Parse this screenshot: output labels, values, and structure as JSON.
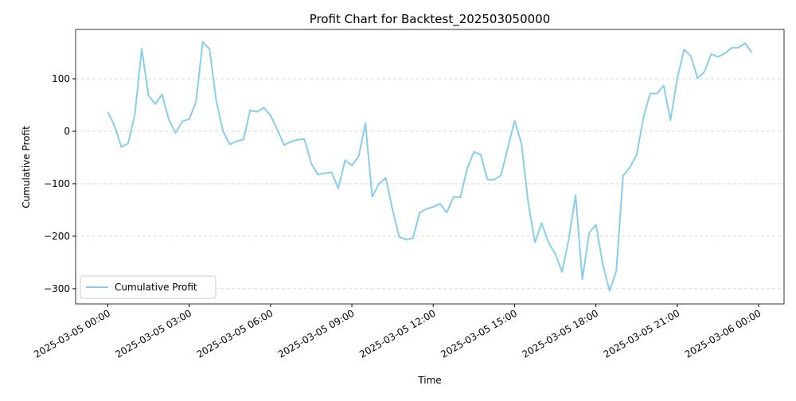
{
  "chart_data": {
    "type": "line",
    "title": "Profit Chart for Backtest_202503050000",
    "xlabel": "Time",
    "ylabel": "Cumulative Profit",
    "x": [
      "2025-03-05 00:00",
      "2025-03-05 00:15",
      "2025-03-05 00:30",
      "2025-03-05 00:45",
      "2025-03-05 01:00",
      "2025-03-05 01:15",
      "2025-03-05 01:30",
      "2025-03-05 01:45",
      "2025-03-05 02:00",
      "2025-03-05 02:15",
      "2025-03-05 02:30",
      "2025-03-05 02:45",
      "2025-03-05 03:00",
      "2025-03-05 03:15",
      "2025-03-05 03:30",
      "2025-03-05 03:45",
      "2025-03-05 04:00",
      "2025-03-05 04:15",
      "2025-03-05 04:30",
      "2025-03-05 04:45",
      "2025-03-05 05:00",
      "2025-03-05 05:15",
      "2025-03-05 05:30",
      "2025-03-05 05:45",
      "2025-03-05 06:00",
      "2025-03-05 06:15",
      "2025-03-05 06:30",
      "2025-03-05 06:45",
      "2025-03-05 07:00",
      "2025-03-05 07:15",
      "2025-03-05 07:30",
      "2025-03-05 07:45",
      "2025-03-05 08:00",
      "2025-03-05 08:15",
      "2025-03-05 08:30",
      "2025-03-05 08:45",
      "2025-03-05 09:00",
      "2025-03-05 09:15",
      "2025-03-05 09:30",
      "2025-03-05 09:45",
      "2025-03-05 10:00",
      "2025-03-05 10:15",
      "2025-03-05 10:30",
      "2025-03-05 10:45",
      "2025-03-05 11:00",
      "2025-03-05 11:15",
      "2025-03-05 11:30",
      "2025-03-05 11:45",
      "2025-03-05 12:00",
      "2025-03-05 12:15",
      "2025-03-05 12:30",
      "2025-03-05 12:45",
      "2025-03-05 13:00",
      "2025-03-05 13:15",
      "2025-03-05 13:30",
      "2025-03-05 13:45",
      "2025-03-05 14:00",
      "2025-03-05 14:15",
      "2025-03-05 14:30",
      "2025-03-05 14:45",
      "2025-03-05 15:00",
      "2025-03-05 15:15",
      "2025-03-05 15:30",
      "2025-03-05 15:45",
      "2025-03-05 16:00",
      "2025-03-05 16:15",
      "2025-03-05 16:30",
      "2025-03-05 16:45",
      "2025-03-05 17:00",
      "2025-03-05 17:15",
      "2025-03-05 17:30",
      "2025-03-05 17:45",
      "2025-03-05 18:00",
      "2025-03-05 18:15",
      "2025-03-05 18:30",
      "2025-03-05 18:45",
      "2025-03-05 19:00",
      "2025-03-05 19:15",
      "2025-03-05 19:30",
      "2025-03-05 19:45",
      "2025-03-05 20:00",
      "2025-03-05 20:15",
      "2025-03-05 20:30",
      "2025-03-05 20:45",
      "2025-03-05 21:00",
      "2025-03-05 21:15",
      "2025-03-05 21:30",
      "2025-03-05 21:45",
      "2025-03-05 22:00",
      "2025-03-05 22:15",
      "2025-03-05 22:30",
      "2025-03-05 22:45",
      "2025-03-05 23:00",
      "2025-03-05 23:15",
      "2025-03-05 23:30",
      "2025-03-05 23:45"
    ],
    "series": [
      {
        "name": "Cumulative Profit",
        "color": "#87ceeb",
        "values": [
          37,
          10,
          -30,
          -23,
          33,
          157,
          68,
          52,
          70,
          22,
          -3,
          19,
          23,
          56,
          170,
          157,
          58,
          0,
          -25,
          -19,
          -16,
          40,
          37,
          45,
          30,
          3,
          -26,
          -20,
          -16,
          -15,
          -61,
          -83,
          -80,
          -78,
          -109,
          -55,
          -65,
          -48,
          15,
          -125,
          -100,
          -89,
          -150,
          -202,
          -206,
          -204,
          -155,
          -148,
          -144,
          -138,
          -155,
          -125,
          -126,
          -72,
          -39,
          -45,
          -92,
          -92,
          -84,
          -32,
          20,
          -23,
          -135,
          -212,
          -175,
          -212,
          -234,
          -268,
          -205,
          -122,
          -282,
          -194,
          -178,
          -253,
          -304,
          -267,
          -85,
          -69,
          -45,
          26,
          72,
          72,
          87,
          21,
          101,
          156,
          143,
          101,
          113,
          147,
          142,
          148,
          159,
          159,
          168,
          150
        ]
      }
    ],
    "xticks": [
      "2025-03-05 00:00",
      "2025-03-05 03:00",
      "2025-03-05 06:00",
      "2025-03-05 09:00",
      "2025-03-05 12:00",
      "2025-03-05 15:00",
      "2025-03-05 18:00",
      "2025-03-05 21:00",
      "2025-03-06 00:00"
    ],
    "ylim": [
      -329,
      194
    ],
    "yticks": [
      {
        "value": -300,
        "label": "−300"
      },
      {
        "value": -200,
        "label": "−200"
      },
      {
        "value": -100,
        "label": "−100"
      },
      0,
      100
    ],
    "grid": "y",
    "legend": "lower left"
  }
}
